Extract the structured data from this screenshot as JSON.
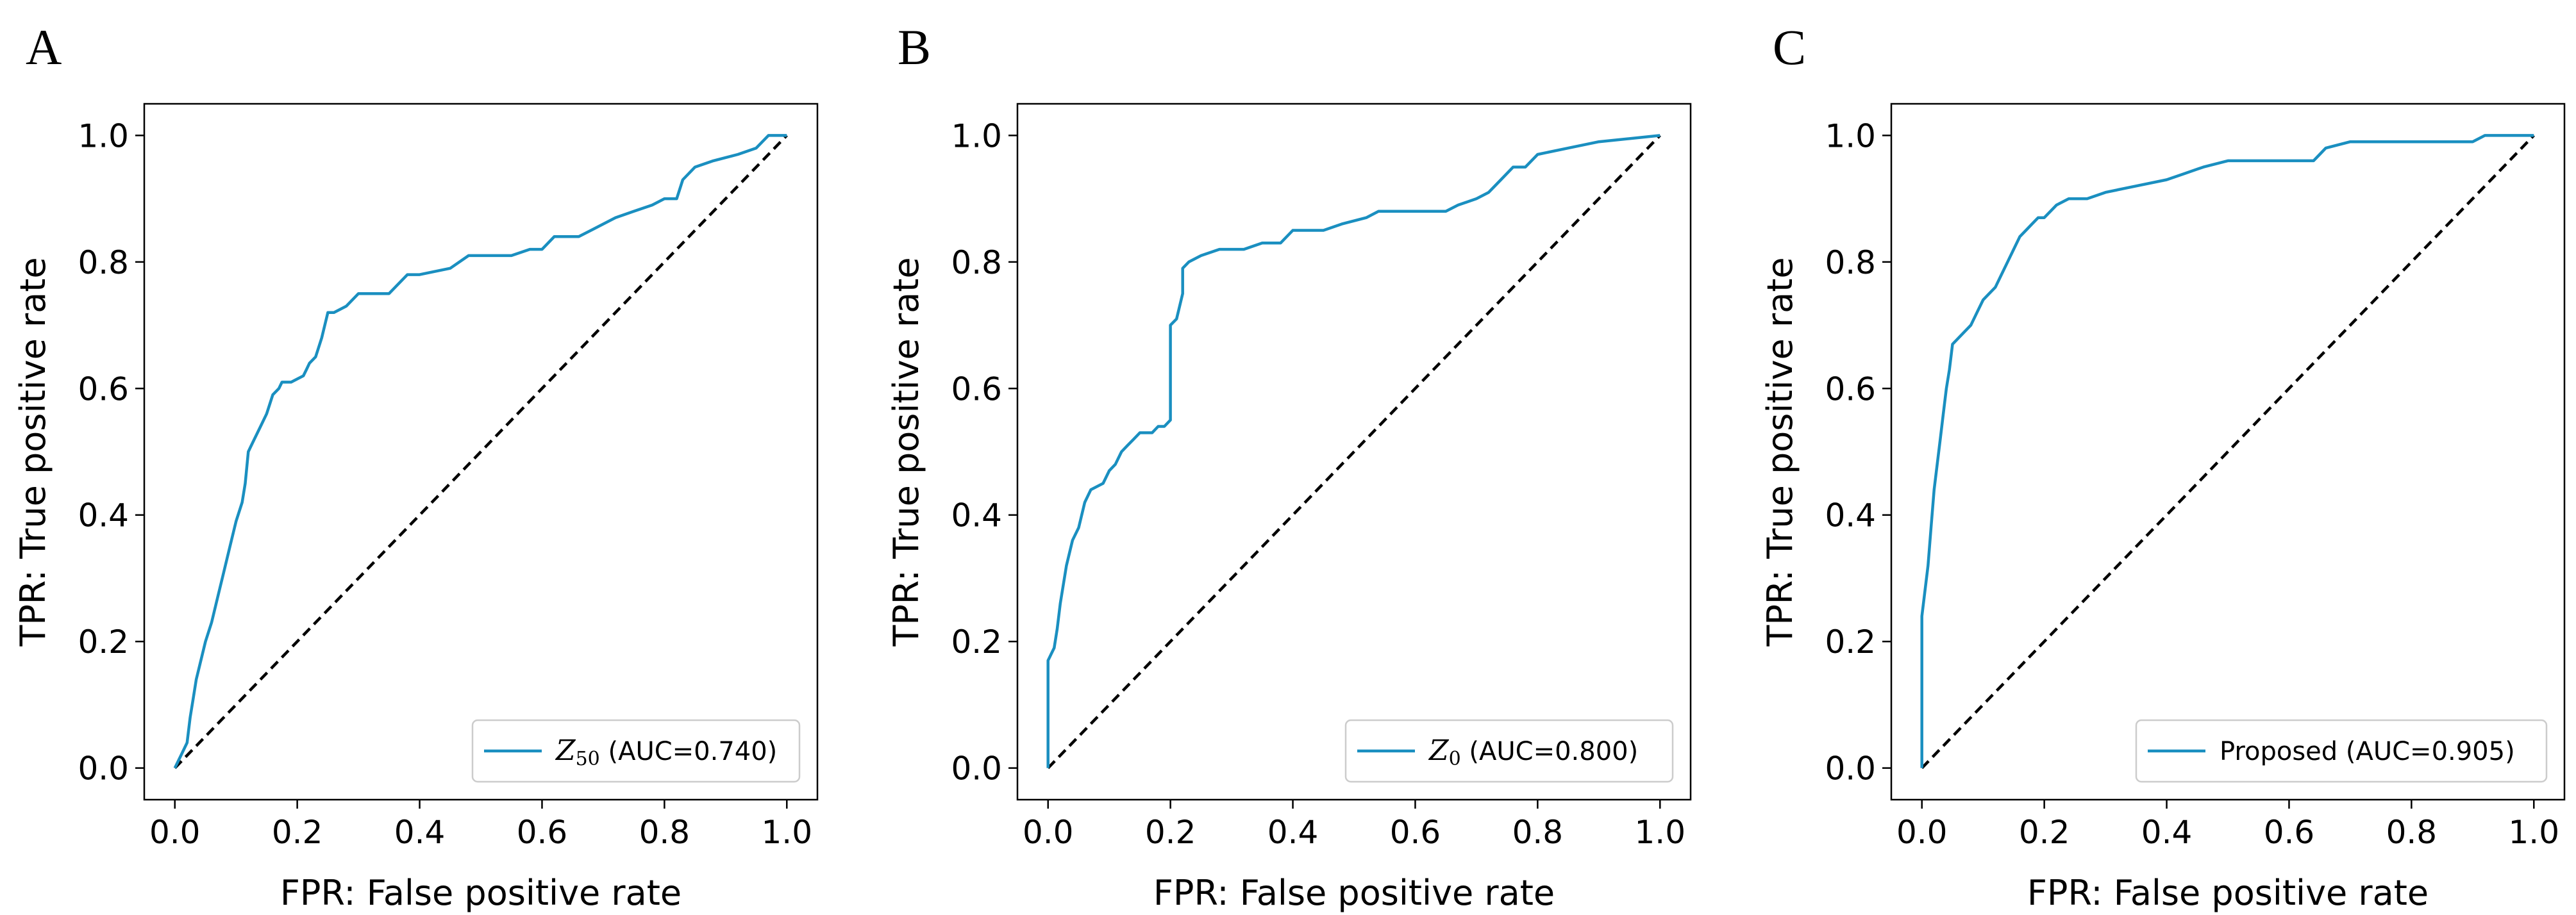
{
  "chart_data": [
    {
      "panel": "A",
      "type": "line",
      "title": "",
      "xlabel": "FPR: False positive rate",
      "ylabel": "TPR: True positive rate",
      "xlim": [
        -0.05,
        1.05
      ],
      "ylim": [
        -0.05,
        1.05
      ],
      "x_ticks": [
        0.0,
        0.2,
        0.4,
        0.6,
        0.8,
        1.0
      ],
      "y_ticks": [
        0.0,
        0.2,
        0.4,
        0.6,
        0.8,
        1.0
      ],
      "x_tick_labels": [
        "0.0",
        "0.2",
        "0.4",
        "0.6",
        "0.8",
        "1.0"
      ],
      "y_tick_labels": [
        "0.0",
        "0.2",
        "0.4",
        "0.6",
        "0.8",
        "1.0"
      ],
      "grid": false,
      "legend_position": "lower-right",
      "legend_label": {
        "symbol": "Z",
        "subscript": "50",
        "text": " (AUC=0.740)"
      },
      "reference_line": {
        "style": "dashed",
        "color": "#000000",
        "from": [
          0,
          0
        ],
        "to": [
          1,
          1
        ]
      },
      "series": [
        {
          "name": "Z50 (AUC=0.740)",
          "color": "#1a8fc0",
          "x": [
            0.0,
            0.01,
            0.02,
            0.025,
            0.03,
            0.035,
            0.04,
            0.05,
            0.06,
            0.07,
            0.08,
            0.09,
            0.1,
            0.11,
            0.115,
            0.12,
            0.125,
            0.13,
            0.14,
            0.15,
            0.16,
            0.17,
            0.175,
            0.18,
            0.19,
            0.21,
            0.215,
            0.22,
            0.23,
            0.24,
            0.245,
            0.25,
            0.26,
            0.28,
            0.3,
            0.33,
            0.35,
            0.37,
            0.38,
            0.4,
            0.45,
            0.48,
            0.55,
            0.58,
            0.6,
            0.62,
            0.66,
            0.68,
            0.7,
            0.72,
            0.75,
            0.78,
            0.8,
            0.82,
            0.83,
            0.85,
            0.88,
            0.92,
            0.95,
            0.96,
            0.97,
            1.0
          ],
          "y": [
            0.0,
            0.02,
            0.04,
            0.08,
            0.11,
            0.14,
            0.16,
            0.2,
            0.23,
            0.27,
            0.31,
            0.35,
            0.39,
            0.42,
            0.45,
            0.5,
            0.51,
            0.52,
            0.54,
            0.56,
            0.59,
            0.6,
            0.61,
            0.61,
            0.61,
            0.62,
            0.63,
            0.64,
            0.65,
            0.68,
            0.7,
            0.72,
            0.72,
            0.73,
            0.75,
            0.75,
            0.75,
            0.77,
            0.78,
            0.78,
            0.79,
            0.81,
            0.81,
            0.82,
            0.82,
            0.84,
            0.84,
            0.85,
            0.86,
            0.87,
            0.88,
            0.89,
            0.9,
            0.9,
            0.93,
            0.95,
            0.96,
            0.97,
            0.98,
            0.99,
            1.0,
            1.0
          ]
        }
      ]
    },
    {
      "panel": "B",
      "type": "line",
      "title": "",
      "xlabel": "FPR: False positive rate",
      "ylabel": "TPR: True positive rate",
      "xlim": [
        -0.05,
        1.05
      ],
      "ylim": [
        -0.05,
        1.05
      ],
      "x_ticks": [
        0.0,
        0.2,
        0.4,
        0.6,
        0.8,
        1.0
      ],
      "y_ticks": [
        0.0,
        0.2,
        0.4,
        0.6,
        0.8,
        1.0
      ],
      "x_tick_labels": [
        "0.0",
        "0.2",
        "0.4",
        "0.6",
        "0.8",
        "1.0"
      ],
      "y_tick_labels": [
        "0.0",
        "0.2",
        "0.4",
        "0.6",
        "0.8",
        "1.0"
      ],
      "grid": false,
      "legend_position": "lower-right",
      "legend_label": {
        "symbol": "Z",
        "subscript": "0",
        "text": " (AUC=0.800)"
      },
      "reference_line": {
        "style": "dashed",
        "color": "#000000",
        "from": [
          0,
          0
        ],
        "to": [
          1,
          1
        ]
      },
      "series": [
        {
          "name": "Z0 (AUC=0.800)",
          "color": "#1a8fc0",
          "x": [
            0.0,
            0.0,
            0.01,
            0.015,
            0.02,
            0.03,
            0.04,
            0.05,
            0.06,
            0.07,
            0.09,
            0.1,
            0.11,
            0.12,
            0.13,
            0.14,
            0.15,
            0.17,
            0.18,
            0.19,
            0.2,
            0.2,
            0.21,
            0.22,
            0.22,
            0.23,
            0.25,
            0.28,
            0.32,
            0.35,
            0.38,
            0.4,
            0.45,
            0.48,
            0.52,
            0.54,
            0.6,
            0.65,
            0.67,
            0.7,
            0.72,
            0.74,
            0.76,
            0.78,
            0.8,
            0.85,
            0.9,
            1.0
          ],
          "y": [
            0.0,
            0.17,
            0.19,
            0.22,
            0.26,
            0.32,
            0.36,
            0.38,
            0.42,
            0.44,
            0.45,
            0.47,
            0.48,
            0.5,
            0.51,
            0.52,
            0.53,
            0.53,
            0.54,
            0.54,
            0.55,
            0.7,
            0.71,
            0.75,
            0.79,
            0.8,
            0.81,
            0.82,
            0.82,
            0.83,
            0.83,
            0.85,
            0.85,
            0.86,
            0.87,
            0.88,
            0.88,
            0.88,
            0.89,
            0.9,
            0.91,
            0.93,
            0.95,
            0.95,
            0.97,
            0.98,
            0.99,
            1.0
          ]
        }
      ]
    },
    {
      "panel": "C",
      "type": "line",
      "title": "",
      "xlabel": "FPR: False positive rate",
      "ylabel": "TPR: True positive rate",
      "xlim": [
        -0.05,
        1.05
      ],
      "ylim": [
        -0.05,
        1.05
      ],
      "x_ticks": [
        0.0,
        0.2,
        0.4,
        0.6,
        0.8,
        1.0
      ],
      "y_ticks": [
        0.0,
        0.2,
        0.4,
        0.6,
        0.8,
        1.0
      ],
      "x_tick_labels": [
        "0.0",
        "0.2",
        "0.4",
        "0.6",
        "0.8",
        "1.0"
      ],
      "y_tick_labels": [
        "0.0",
        "0.2",
        "0.4",
        "0.6",
        "0.8",
        "1.0"
      ],
      "grid": false,
      "legend_position": "lower-right",
      "legend_label": {
        "symbol": "",
        "subscript": "",
        "text": "Proposed (AUC=0.905)"
      },
      "reference_line": {
        "style": "dashed",
        "color": "#000000",
        "from": [
          0,
          0
        ],
        "to": [
          1,
          1
        ]
      },
      "series": [
        {
          "name": "Proposed (AUC=0.905)",
          "color": "#1a8fc0",
          "x": [
            0.0,
            0.0,
            0.005,
            0.01,
            0.015,
            0.02,
            0.025,
            0.03,
            0.035,
            0.04,
            0.045,
            0.05,
            0.06,
            0.07,
            0.08,
            0.09,
            0.1,
            0.11,
            0.12,
            0.13,
            0.14,
            0.15,
            0.16,
            0.17,
            0.18,
            0.19,
            0.2,
            0.21,
            0.22,
            0.24,
            0.27,
            0.3,
            0.35,
            0.4,
            0.43,
            0.46,
            0.5,
            0.55,
            0.6,
            0.64,
            0.65,
            0.66,
            0.7,
            0.8,
            0.9,
            0.92,
            1.0
          ],
          "y": [
            0.0,
            0.24,
            0.28,
            0.32,
            0.38,
            0.44,
            0.48,
            0.52,
            0.56,
            0.6,
            0.63,
            0.67,
            0.68,
            0.69,
            0.7,
            0.72,
            0.74,
            0.75,
            0.76,
            0.78,
            0.8,
            0.82,
            0.84,
            0.85,
            0.86,
            0.87,
            0.87,
            0.88,
            0.89,
            0.9,
            0.9,
            0.91,
            0.92,
            0.93,
            0.94,
            0.95,
            0.96,
            0.96,
            0.96,
            0.96,
            0.97,
            0.98,
            0.99,
            0.99,
            0.99,
            1.0,
            1.0
          ]
        }
      ]
    }
  ]
}
